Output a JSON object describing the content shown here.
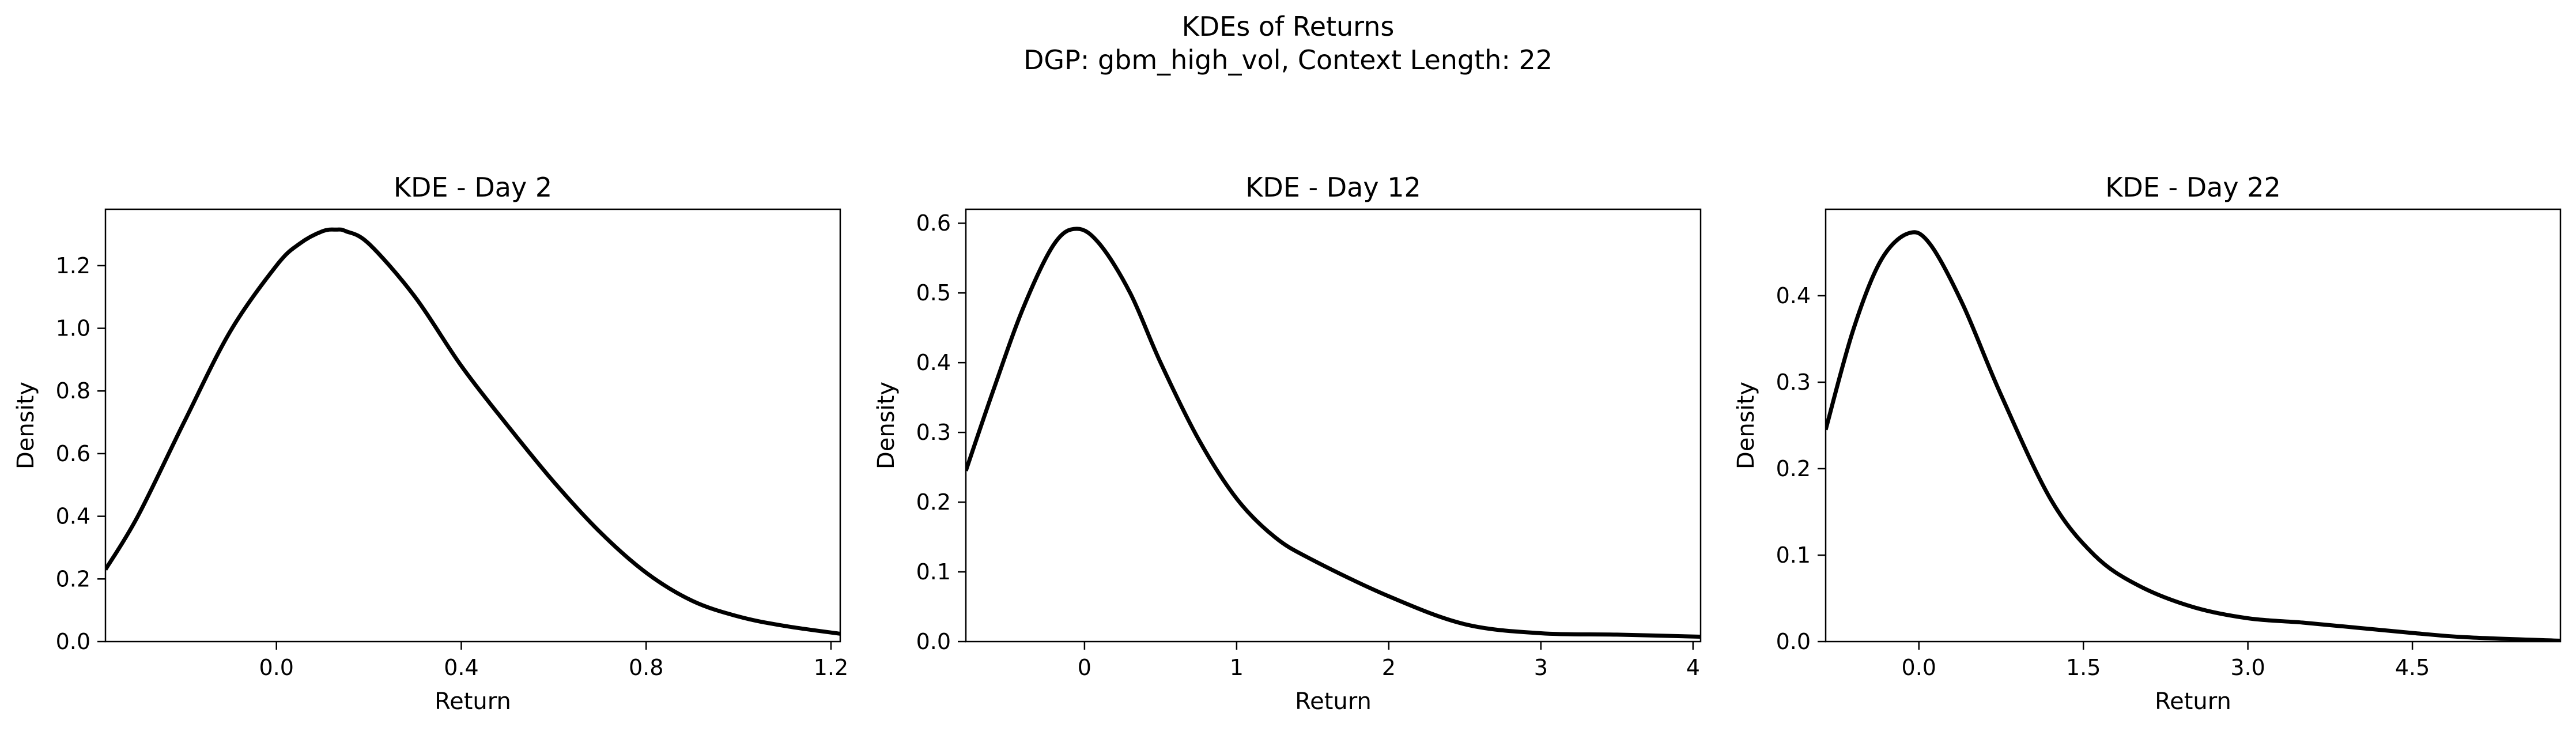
{
  "figure": {
    "suptitle_line1": "KDEs of Returns",
    "suptitle_line2": "DGP: gbm_high_vol, Context Length: 22"
  },
  "colors": {
    "line": "#000000",
    "axes": "#000000",
    "background": "#ffffff"
  },
  "chart_data": [
    {
      "type": "line",
      "title": "KDE - Day 2",
      "xlabel": "Return",
      "ylabel": "Density",
      "xlim": [
        -0.37,
        1.22
      ],
      "ylim": [
        0.0,
        1.38
      ],
      "xticks": [
        0.0,
        0.4,
        0.8,
        1.2
      ],
      "xtick_labels": [
        "0.0",
        "0.4",
        "0.8",
        "1.2"
      ],
      "yticks": [
        0.0,
        0.2,
        0.4,
        0.6,
        0.8,
        1.0,
        1.2
      ],
      "ytick_labels": [
        "0.0",
        "0.2",
        "0.4",
        "0.6",
        "0.8",
        "1.0",
        "1.2"
      ],
      "grid": false,
      "series": [
        {
          "x": [
            -0.37,
            -0.3,
            -0.2,
            -0.1,
            0.0,
            0.05,
            0.1,
            0.13,
            0.15,
            0.2,
            0.3,
            0.4,
            0.5,
            0.6,
            0.7,
            0.8,
            0.9,
            1.0,
            1.1,
            1.22
          ],
          "y": [
            0.23,
            0.4,
            0.7,
            0.99,
            1.2,
            1.27,
            1.31,
            1.315,
            1.31,
            1.27,
            1.1,
            0.88,
            0.69,
            0.51,
            0.35,
            0.22,
            0.13,
            0.08,
            0.05,
            0.025
          ]
        }
      ]
    },
    {
      "type": "line",
      "title": "KDE - Day 12",
      "xlabel": "Return",
      "ylabel": "Density",
      "xlim": [
        -0.78,
        4.05
      ],
      "ylim": [
        0.0,
        0.62
      ],
      "xticks": [
        0,
        1,
        2,
        3,
        4
      ],
      "xtick_labels": [
        "0",
        "1",
        "2",
        "3",
        "4"
      ],
      "yticks": [
        0.0,
        0.1,
        0.2,
        0.3,
        0.4,
        0.5,
        0.6
      ],
      "ytick_labels": [
        "0.0",
        "0.1",
        "0.2",
        "0.3",
        "0.4",
        "0.5",
        "0.6"
      ],
      "grid": false,
      "series": [
        {
          "x": [
            -0.78,
            -0.6,
            -0.4,
            -0.2,
            -0.05,
            0.1,
            0.3,
            0.5,
            0.75,
            1.0,
            1.25,
            1.5,
            2.0,
            2.5,
            3.0,
            3.5,
            4.05
          ],
          "y": [
            0.245,
            0.36,
            0.48,
            0.57,
            0.592,
            0.57,
            0.5,
            0.4,
            0.29,
            0.205,
            0.15,
            0.117,
            0.065,
            0.025,
            0.012,
            0.01,
            0.007
          ]
        }
      ]
    },
    {
      "type": "line",
      "title": "KDE - Day 22",
      "xlabel": "Return",
      "ylabel": "Density",
      "xlim": [
        -0.85,
        5.85
      ],
      "ylim": [
        0.0,
        0.5
      ],
      "xticks": [
        0.0,
        1.5,
        3.0,
        4.5
      ],
      "xtick_labels": [
        "0.0",
        "1.5",
        "3.0",
        "4.5"
      ],
      "yticks": [
        0.0,
        0.1,
        0.2,
        0.3,
        0.4
      ],
      "ytick_labels": [
        "0.0",
        "0.1",
        "0.2",
        "0.3",
        "0.4"
      ],
      "grid": false,
      "series": [
        {
          "x": [
            -0.85,
            -0.6,
            -0.35,
            -0.1,
            0.1,
            0.4,
            0.75,
            1.2,
            1.6,
            2.0,
            2.5,
            3.0,
            3.5,
            4.0,
            4.5,
            5.0,
            5.85
          ],
          "y": [
            0.245,
            0.36,
            0.44,
            0.472,
            0.46,
            0.39,
            0.285,
            0.165,
            0.1,
            0.065,
            0.04,
            0.027,
            0.022,
            0.016,
            0.01,
            0.005,
            0.001
          ]
        }
      ]
    }
  ]
}
